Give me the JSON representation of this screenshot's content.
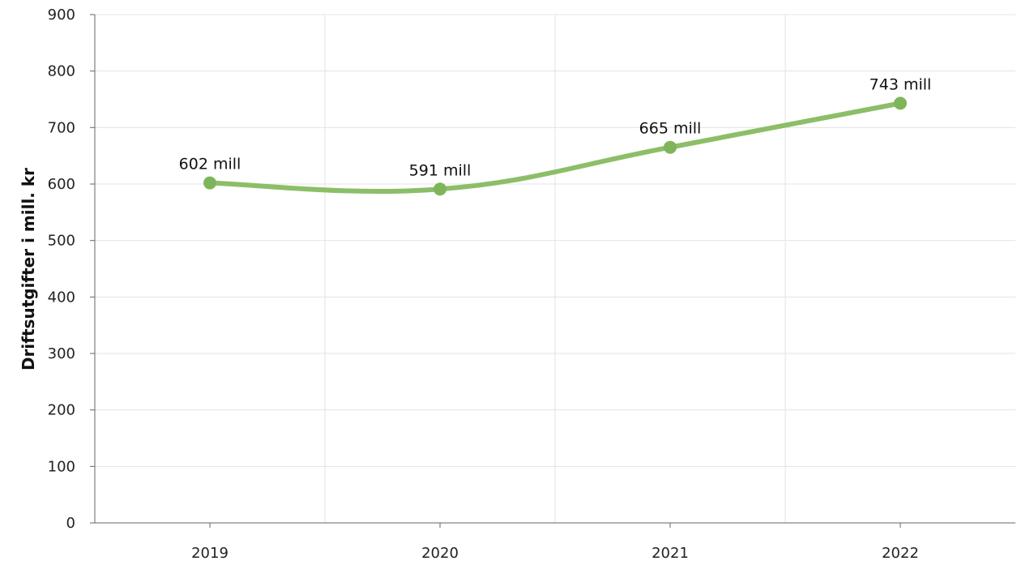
{
  "chart_data": {
    "type": "line",
    "smooth": true,
    "title": "",
    "xlabel": "",
    "ylabel": "Driftsutgifter i mill. kr",
    "categories": [
      "2019",
      "2020",
      "2021",
      "2022"
    ],
    "series": [
      {
        "values": [
          602,
          591,
          665,
          743
        ],
        "data_labels": [
          "602 mill",
          "591 mill",
          "665 mill",
          "743 mill"
        ],
        "color": "#8cbe68",
        "marker_color": "#7fb55a"
      }
    ],
    "ylim": [
      0,
      900
    ],
    "yticks": [
      0,
      100,
      200,
      300,
      400,
      500,
      600,
      700,
      800,
      900
    ],
    "grid": true,
    "legend": "none"
  }
}
